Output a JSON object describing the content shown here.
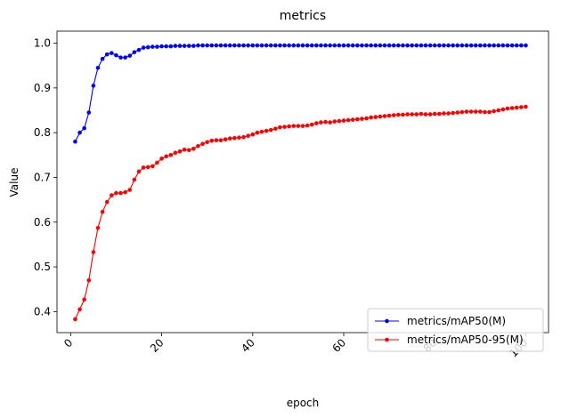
{
  "chart_data": {
    "type": "line",
    "title": "metrics",
    "xlabel": "epoch",
    "ylabel": "Value",
    "xlim": [
      -3,
      105
    ],
    "ylim": [
      0.353,
      1.027
    ],
    "xticks": [
      0,
      20,
      40,
      60,
      80,
      100
    ],
    "yticks": [
      0.4,
      0.5,
      0.6,
      0.7,
      0.8,
      0.9,
      1.0
    ],
    "xtick_labels": [
      "0",
      "20",
      "40",
      "60",
      "80",
      "100"
    ],
    "ytick_labels": [
      "0.4",
      "0.5",
      "0.6",
      "0.7",
      "0.8",
      "0.9",
      "1.0"
    ],
    "xtick_rotation": 45,
    "grid": false,
    "legend_position": "lower-right",
    "x": [
      1,
      2,
      3,
      4,
      5,
      6,
      7,
      8,
      9,
      10,
      11,
      12,
      13,
      14,
      15,
      16,
      17,
      18,
      19,
      20,
      21,
      22,
      23,
      24,
      25,
      26,
      27,
      28,
      29,
      30,
      31,
      32,
      33,
      34,
      35,
      36,
      37,
      38,
      39,
      40,
      41,
      42,
      43,
      44,
      45,
      46,
      47,
      48,
      49,
      50,
      51,
      52,
      53,
      54,
      55,
      56,
      57,
      58,
      59,
      60,
      61,
      62,
      63,
      64,
      65,
      66,
      67,
      68,
      69,
      70,
      71,
      72,
      73,
      74,
      75,
      76,
      77,
      78,
      79,
      80,
      81,
      82,
      83,
      84,
      85,
      86,
      87,
      88,
      89,
      90,
      91,
      92,
      93,
      94,
      95,
      96,
      97,
      98,
      99,
      100
    ],
    "series": [
      {
        "name": "metrics/mAP50(M)",
        "color": "#0000ff",
        "values": [
          0.78,
          0.8,
          0.81,
          0.845,
          0.905,
          0.945,
          0.965,
          0.975,
          0.978,
          0.973,
          0.968,
          0.968,
          0.972,
          0.98,
          0.985,
          0.99,
          0.991,
          0.992,
          0.992,
          0.993,
          0.993,
          0.993,
          0.994,
          0.994,
          0.994,
          0.994,
          0.994,
          0.995,
          0.995,
          0.995,
          0.995,
          0.995,
          0.995,
          0.995,
          0.995,
          0.995,
          0.995,
          0.995,
          0.995,
          0.995,
          0.995,
          0.995,
          0.995,
          0.995,
          0.995,
          0.995,
          0.995,
          0.995,
          0.995,
          0.995,
          0.995,
          0.995,
          0.995,
          0.995,
          0.995,
          0.995,
          0.995,
          0.995,
          0.995,
          0.995,
          0.995,
          0.995,
          0.995,
          0.995,
          0.995,
          0.995,
          0.995,
          0.995,
          0.995,
          0.995,
          0.995,
          0.995,
          0.995,
          0.995,
          0.995,
          0.995,
          0.995,
          0.995,
          0.995,
          0.995,
          0.995,
          0.995,
          0.995,
          0.995,
          0.995,
          0.995,
          0.995,
          0.995,
          0.995,
          0.995,
          0.995,
          0.995,
          0.995,
          0.995,
          0.995,
          0.995,
          0.995,
          0.995,
          0.995,
          0.995
        ]
      },
      {
        "name": "metrics/mAP50-95(M)",
        "color": "#ff0000",
        "values": [
          0.383,
          0.405,
          0.427,
          0.47,
          0.533,
          0.587,
          0.623,
          0.645,
          0.66,
          0.665,
          0.665,
          0.667,
          0.672,
          0.695,
          0.713,
          0.722,
          0.723,
          0.725,
          0.733,
          0.742,
          0.747,
          0.75,
          0.755,
          0.758,
          0.762,
          0.761,
          0.764,
          0.77,
          0.775,
          0.779,
          0.782,
          0.783,
          0.783,
          0.785,
          0.787,
          0.788,
          0.789,
          0.79,
          0.793,
          0.796,
          0.8,
          0.802,
          0.804,
          0.806,
          0.809,
          0.812,
          0.813,
          0.814,
          0.815,
          0.815,
          0.815,
          0.816,
          0.818,
          0.821,
          0.823,
          0.824,
          0.823,
          0.825,
          0.826,
          0.827,
          0.828,
          0.829,
          0.83,
          0.831,
          0.832,
          0.834,
          0.835,
          0.836,
          0.837,
          0.838,
          0.839,
          0.84,
          0.84,
          0.841,
          0.841,
          0.841,
          0.842,
          0.841,
          0.841,
          0.842,
          0.842,
          0.843,
          0.843,
          0.844,
          0.845,
          0.846,
          0.847,
          0.847,
          0.847,
          0.847,
          0.846,
          0.846,
          0.848,
          0.85,
          0.852,
          0.854,
          0.855,
          0.856,
          0.857,
          0.858
        ]
      }
    ]
  }
}
